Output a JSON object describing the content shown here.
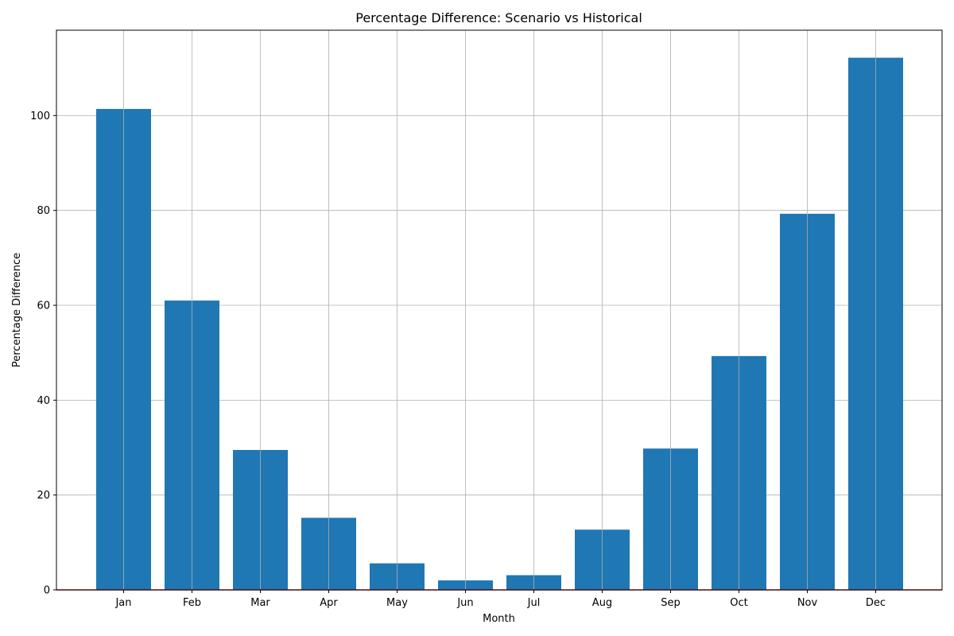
{
  "chart_data": {
    "type": "bar",
    "title": "Percentage Difference: Scenario vs Historical",
    "xlabel": "Month",
    "ylabel": "Percentage Difference",
    "categories": [
      "Jan",
      "Feb",
      "Mar",
      "Apr",
      "May",
      "Jun",
      "Jul",
      "Aug",
      "Sep",
      "Oct",
      "Nov",
      "Dec"
    ],
    "values": [
      101.4,
      61.0,
      29.5,
      15.2,
      5.6,
      2.0,
      3.1,
      12.7,
      29.8,
      49.3,
      79.3,
      112.2
    ],
    "ylim": [
      0,
      118
    ],
    "yticks": [
      0,
      20,
      40,
      60,
      80,
      100
    ],
    "grid": true,
    "bar_color": "#1f77b4",
    "reference_line": {
      "y": 0,
      "color": "#d62728"
    }
  }
}
